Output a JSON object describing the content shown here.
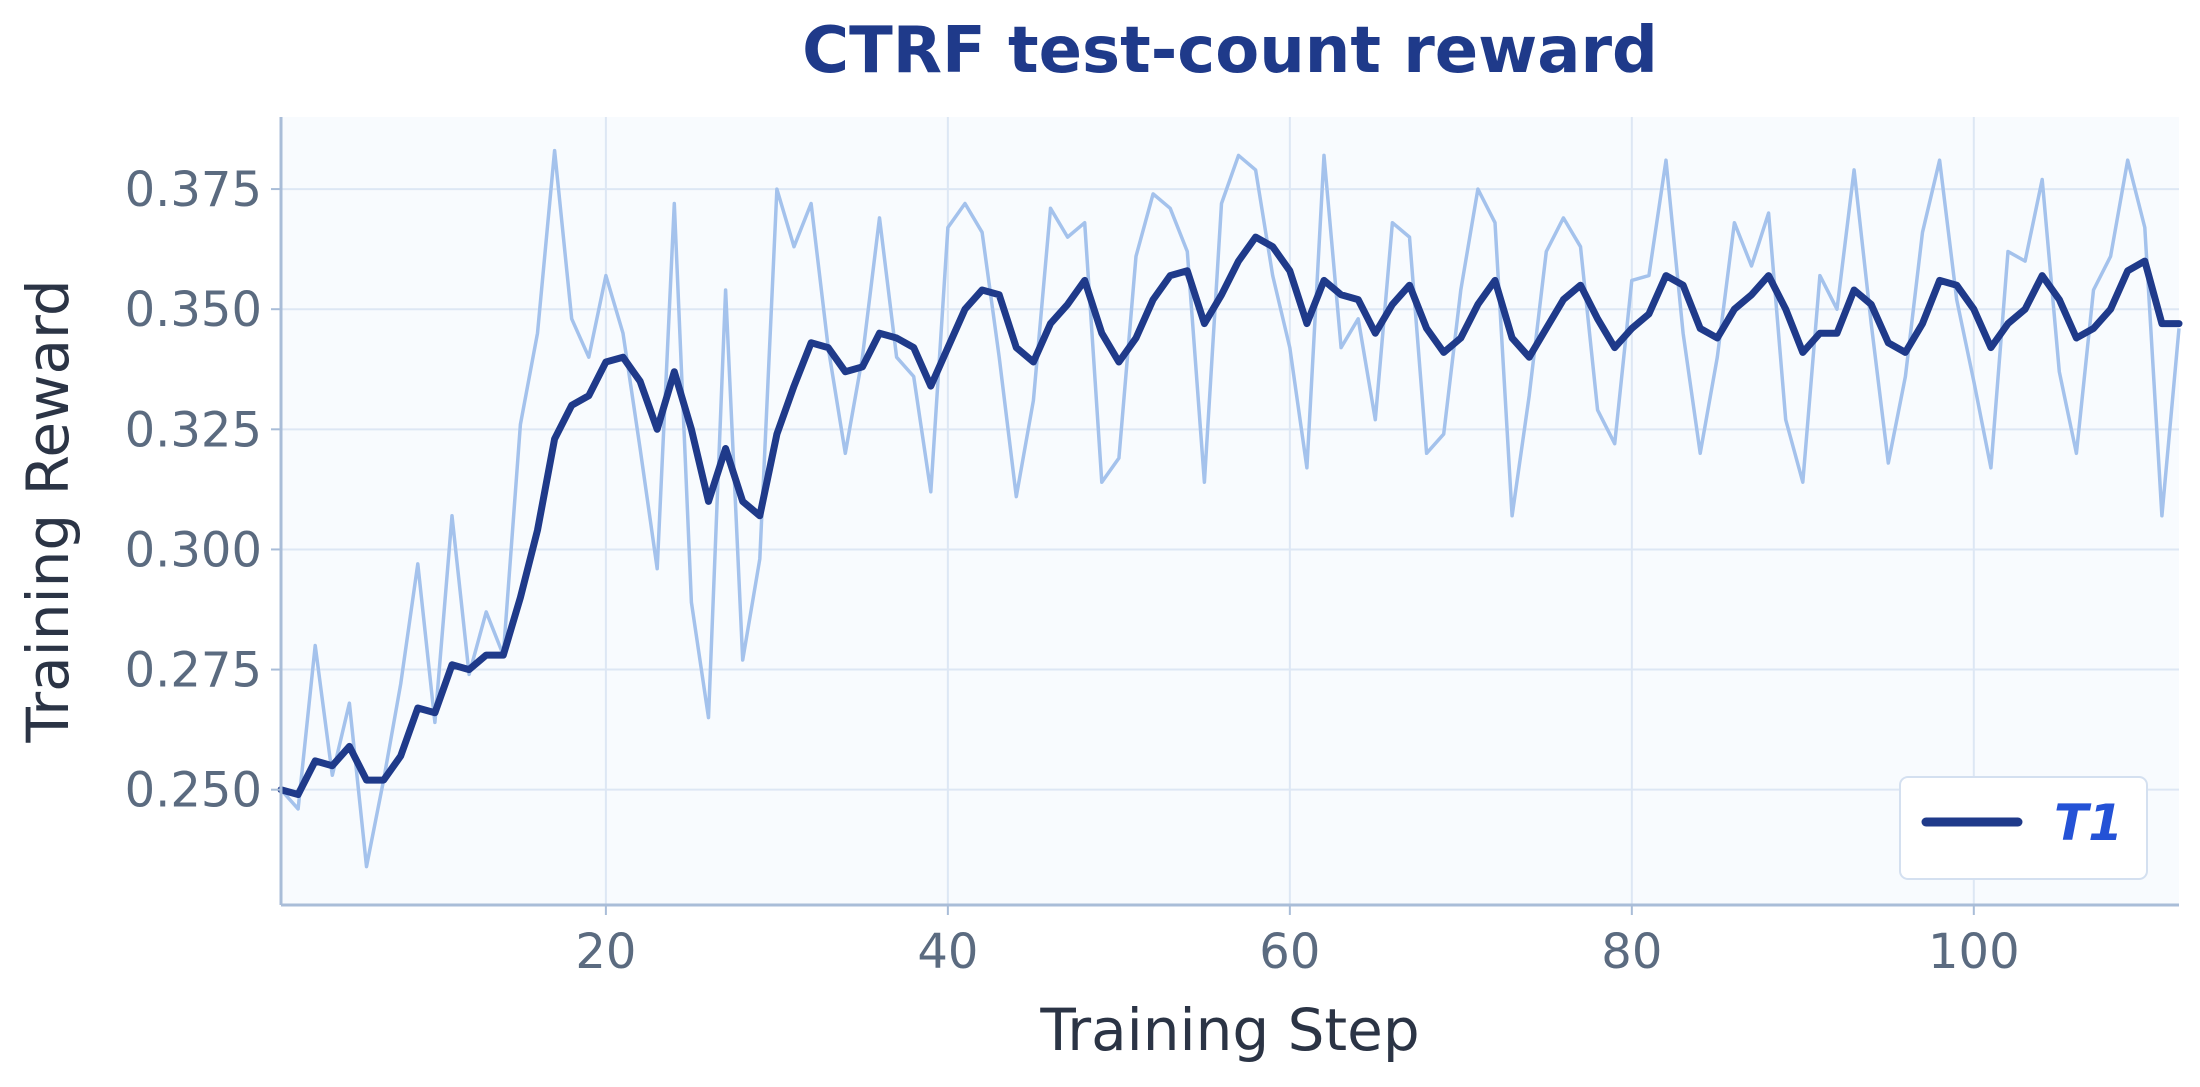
{
  "chart_data": {
    "type": "line",
    "title": "CTRF test-count reward",
    "xlabel": "Training Step",
    "ylabel": "Training Reward",
    "xlim": [
      1,
      112
    ],
    "ylim": [
      0.226,
      0.39
    ],
    "xticks": [
      20,
      40,
      60,
      80,
      100
    ],
    "yticks": [
      0.25,
      0.275,
      0.3,
      0.325,
      0.35,
      0.375
    ],
    "ytick_labels": [
      "0.250",
      "0.275",
      "0.300",
      "0.325",
      "0.350",
      "0.375"
    ],
    "xtick_labels": [
      "20",
      "40",
      "60",
      "80",
      "100"
    ],
    "grid": true,
    "legend_position": "bottom-right",
    "raw_series": {
      "color": "#a4c2ec",
      "x": [
        1,
        2,
        3,
        4,
        5,
        6,
        7,
        8,
        9,
        10,
        11,
        12,
        13,
        14,
        15,
        16,
        17,
        18,
        19,
        20,
        21,
        22,
        23,
        24,
        25,
        26,
        27,
        28,
        29,
        30,
        31,
        32,
        33,
        34,
        35,
        36,
        37,
        38,
        39,
        40,
        41,
        42,
        43,
        44,
        45,
        46,
        47,
        48,
        49,
        50,
        51,
        52,
        53,
        54,
        55,
        56,
        57,
        58,
        59,
        60,
        61,
        62,
        63,
        64,
        65,
        66,
        67,
        68,
        69,
        70,
        71,
        72,
        73,
        74,
        75,
        76,
        77,
        78,
        79,
        80,
        81,
        82,
        83,
        84,
        85,
        86,
        87,
        88,
        89,
        90,
        91,
        92,
        93,
        94,
        95,
        96,
        97,
        98,
        99,
        100,
        101,
        102,
        103,
        104,
        105,
        106,
        107,
        108,
        109,
        110,
        111,
        112
      ],
      "y": [
        0.25,
        0.246,
        0.28,
        0.253,
        0.268,
        0.234,
        0.252,
        0.272,
        0.297,
        0.264,
        0.307,
        0.274,
        0.287,
        0.278,
        0.326,
        0.345,
        0.383,
        0.348,
        0.34,
        0.357,
        0.345,
        0.321,
        0.296,
        0.372,
        0.289,
        0.265,
        0.354,
        0.277,
        0.298,
        0.375,
        0.363,
        0.372,
        0.342,
        0.32,
        0.34,
        0.369,
        0.34,
        0.336,
        0.312,
        0.367,
        0.372,
        0.366,
        0.34,
        0.311,
        0.331,
        0.371,
        0.365,
        0.368,
        0.314,
        0.319,
        0.361,
        0.374,
        0.371,
        0.362,
        0.314,
        0.372,
        0.382,
        0.379,
        0.357,
        0.342,
        0.317,
        0.382,
        0.342,
        0.348,
        0.327,
        0.368,
        0.365,
        0.32,
        0.324,
        0.354,
        0.375,
        0.368,
        0.307,
        0.332,
        0.362,
        0.369,
        0.363,
        0.329,
        0.322,
        0.356,
        0.357,
        0.381,
        0.345,
        0.32,
        0.34,
        0.368,
        0.359,
        0.37,
        0.327,
        0.314,
        0.357,
        0.35,
        0.379,
        0.347,
        0.318,
        0.336,
        0.366,
        0.381,
        0.352,
        0.335,
        0.317,
        0.362,
        0.36,
        0.377,
        0.337,
        0.32,
        0.354,
        0.361,
        0.381,
        0.367,
        0.307,
        0.346
      ]
    },
    "series": [
      {
        "name": "T1",
        "color": "#1f3a8a",
        "x": [
          1,
          2,
          3,
          4,
          5,
          6,
          7,
          8,
          9,
          10,
          11,
          12,
          13,
          14,
          15,
          16,
          17,
          18,
          19,
          20,
          21,
          22,
          23,
          24,
          25,
          26,
          27,
          28,
          29,
          30,
          31,
          32,
          33,
          34,
          35,
          36,
          37,
          38,
          39,
          40,
          41,
          42,
          43,
          44,
          45,
          46,
          47,
          48,
          49,
          50,
          51,
          52,
          53,
          54,
          55,
          56,
          57,
          58,
          59,
          60,
          61,
          62,
          63,
          64,
          65,
          66,
          67,
          68,
          69,
          70,
          71,
          72,
          73,
          74,
          75,
          76,
          77,
          78,
          79,
          80,
          81,
          82,
          83,
          84,
          85,
          86,
          87,
          88,
          89,
          90,
          91,
          92,
          93,
          94,
          95,
          96,
          97,
          98,
          99,
          100,
          101,
          102,
          103,
          104,
          105,
          106,
          107,
          108,
          109,
          110,
          111,
          112
        ],
        "values": [
          0.25,
          0.249,
          0.256,
          0.255,
          0.259,
          0.252,
          0.252,
          0.257,
          0.267,
          0.266,
          0.276,
          0.275,
          0.278,
          0.278,
          0.29,
          0.304,
          0.323,
          0.33,
          0.332,
          0.339,
          0.34,
          0.335,
          0.325,
          0.337,
          0.325,
          0.31,
          0.321,
          0.31,
          0.307,
          0.324,
          0.334,
          0.343,
          0.342,
          0.337,
          0.338,
          0.345,
          0.344,
          0.342,
          0.334,
          0.342,
          0.35,
          0.354,
          0.353,
          0.342,
          0.339,
          0.347,
          0.351,
          0.356,
          0.345,
          0.339,
          0.344,
          0.352,
          0.357,
          0.358,
          0.347,
          0.353,
          0.36,
          0.365,
          0.363,
          0.358,
          0.347,
          0.356,
          0.353,
          0.352,
          0.345,
          0.351,
          0.355,
          0.346,
          0.341,
          0.344,
          0.351,
          0.356,
          0.344,
          0.34,
          0.346,
          0.352,
          0.355,
          0.348,
          0.342,
          0.346,
          0.349,
          0.357,
          0.355,
          0.346,
          0.344,
          0.35,
          0.353,
          0.357,
          0.35,
          0.341,
          0.345,
          0.345,
          0.354,
          0.351,
          0.343,
          0.341,
          0.347,
          0.356,
          0.355,
          0.35,
          0.342,
          0.347,
          0.35,
          0.357,
          0.352,
          0.344,
          0.346,
          0.35,
          0.358,
          0.36,
          0.347,
          0.347
        ]
      }
    ]
  },
  "colors": {
    "background_plot": "#f8fbfe",
    "grid": "#dde7f4",
    "axis": "#a9bdd8",
    "title": "#1f3a8a",
    "tick": "#5b6b80",
    "legend_text": "#2452d6"
  }
}
